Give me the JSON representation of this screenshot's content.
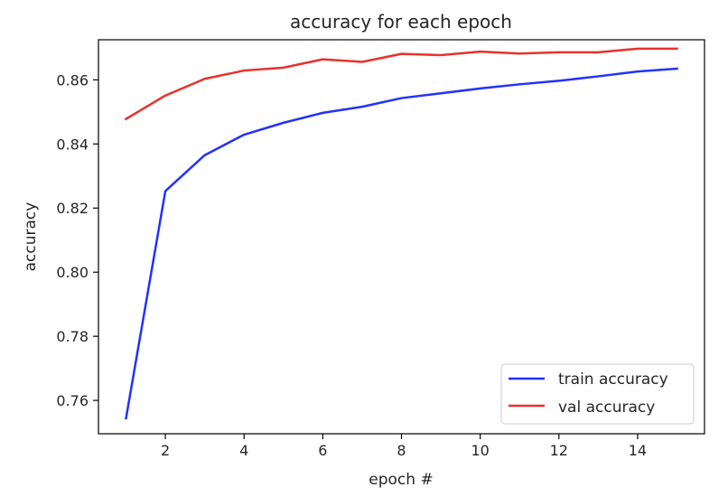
{
  "chart_data": {
    "type": "line",
    "title": "accuracy for each epoch",
    "xlabel": "epoch #",
    "ylabel": "accuracy",
    "x": [
      1,
      2,
      3,
      4,
      5,
      6,
      7,
      8,
      9,
      10,
      11,
      12,
      13,
      14,
      15
    ],
    "xlim": [
      0.3,
      15.7
    ],
    "ylim": [
      0.7496,
      0.8725
    ],
    "x_ticks": [
      2,
      4,
      6,
      8,
      10,
      12,
      14
    ],
    "y_ticks": [
      0.76,
      0.78,
      0.8,
      0.82,
      0.84,
      0.86
    ],
    "x_tick_labels": [
      "2",
      "4",
      "6",
      "8",
      "10",
      "12",
      "14"
    ],
    "y_tick_labels": [
      "0.76",
      "0.78",
      "0.80",
      "0.82",
      "0.84",
      "0.86"
    ],
    "grid": false,
    "legend_position": "lower-right",
    "series": [
      {
        "name": "train accuracy",
        "color": "#2231ff",
        "values": [
          0.7544,
          0.8253,
          0.8365,
          0.8429,
          0.8466,
          0.8497,
          0.8516,
          0.8543,
          0.8558,
          0.8573,
          0.8586,
          0.8597,
          0.8611,
          0.8626,
          0.8635
        ]
      },
      {
        "name": "val accuracy",
        "color": "#e8312c",
        "values": [
          0.8478,
          0.8551,
          0.8603,
          0.8629,
          0.8638,
          0.8664,
          0.8656,
          0.8681,
          0.8677,
          0.8688,
          0.8682,
          0.8686,
          0.8686,
          0.8697,
          0.8697
        ]
      }
    ]
  }
}
